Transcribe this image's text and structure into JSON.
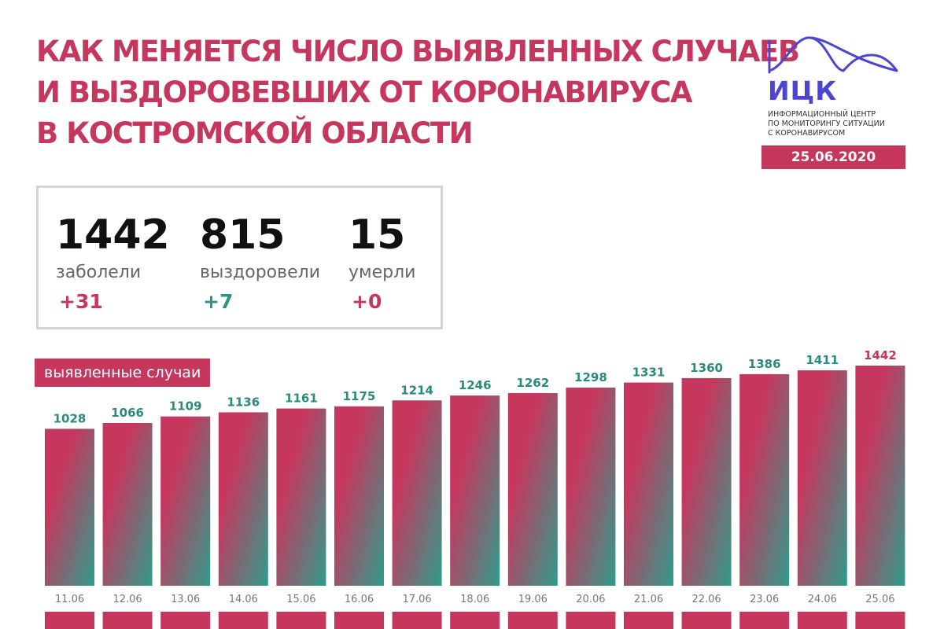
{
  "header": {
    "title_lines": [
      "КАК МЕНЯЕТСЯ ЧИСЛО ВЫЯВЛЕННЫХ СЛУЧАЕВ",
      "И ВЫЗДОРОВЕВШИХ ОТ КОРОНАВИРУСА",
      "В КОСТРОМСКОЙ ОБЛАСТИ"
    ]
  },
  "logo": {
    "abbr": "ИЦК",
    "desc_lines": [
      "ИНФОРМАЦИОННЫЙ ЦЕНТР",
      "ПО МОНИТОРИНГУ СИТУАЦИИ",
      "С КОРОНАВИРУСОМ"
    ],
    "date": "25.06.2020",
    "color": "#4b45d1"
  },
  "stats": [
    {
      "value": "1442",
      "label": "заболели",
      "delta": "+31",
      "delta_color": "#c6375e"
    },
    {
      "value": "815",
      "label": "выздоровели",
      "delta": "+7",
      "delta_color": "#2b9486"
    },
    {
      "value": "15",
      "label": "умерли",
      "delta": "+0",
      "delta_color": "#c6375e"
    }
  ],
  "colors": {
    "accent": "#c6375e",
    "teal": "#2f9d8c",
    "value_label": "#2b8a7e"
  },
  "chart_data": {
    "type": "bar",
    "series_label": "выявленные случаи",
    "categories": [
      "11.06",
      "12.06",
      "13.06",
      "14.06",
      "15.06",
      "16.06",
      "17.06",
      "18.06",
      "19.06",
      "20.06",
      "21.06",
      "22.06",
      "23.06",
      "24.06",
      "25.06"
    ],
    "values": [
      1028,
      1066,
      1109,
      1136,
      1161,
      1175,
      1214,
      1246,
      1262,
      1298,
      1331,
      1360,
      1386,
      1411,
      1442
    ],
    "ylim": [
      0,
      1442
    ],
    "grid": false,
    "legend": "none"
  }
}
